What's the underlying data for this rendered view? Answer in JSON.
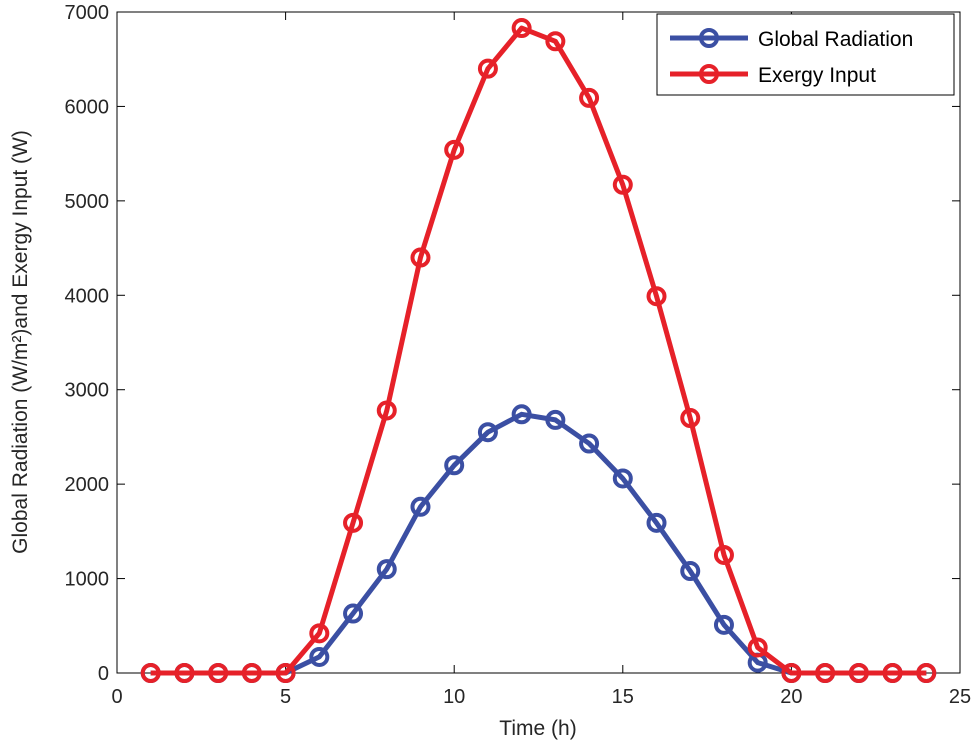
{
  "chart_data": {
    "type": "line",
    "xlabel": "Time (h)",
    "ylabel": "Global Radiation (W/m²)and Exergy Input (W)",
    "xlim": [
      0,
      25
    ],
    "ylim": [
      0,
      7000
    ],
    "xticks": [
      0,
      5,
      10,
      15,
      20,
      25
    ],
    "yticks": [
      0,
      1000,
      2000,
      3000,
      4000,
      5000,
      6000,
      7000
    ],
    "grid": false,
    "legend_position": "top-right",
    "x": [
      1,
      2,
      3,
      4,
      5,
      6,
      7,
      8,
      9,
      10,
      11,
      12,
      13,
      14,
      15,
      16,
      17,
      18,
      19,
      20,
      21,
      22,
      23,
      24
    ],
    "series": [
      {
        "name": "Global Radiation",
        "color": "#3B4FA3",
        "marker": "circle",
        "values": [
          0,
          0,
          0,
          0,
          0,
          170,
          630,
          1100,
          1760,
          2200,
          2550,
          2740,
          2680,
          2430,
          2060,
          1590,
          1080,
          510,
          110,
          0,
          0,
          0,
          0,
          0
        ]
      },
      {
        "name": "Exergy Input",
        "color": "#E62129",
        "marker": "circle",
        "values": [
          0,
          0,
          0,
          0,
          0,
          420,
          1590,
          2780,
          4400,
          5540,
          6400,
          6830,
          6690,
          6090,
          5170,
          3990,
          2700,
          1250,
          270,
          0,
          0,
          0,
          0,
          0
        ]
      }
    ]
  }
}
